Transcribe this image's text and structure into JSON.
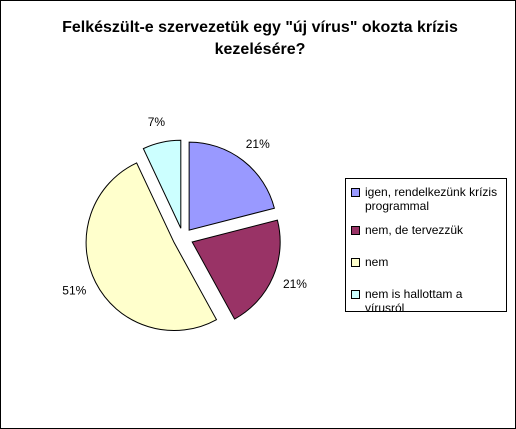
{
  "chart_data": {
    "type": "pie",
    "title": "Felkészült-e szervezetük egy \"új vírus\" okozta krízis kezelésére?",
    "categories": [
      "igen, rendelkezünk krízis programmal",
      "nem, de tervezzük",
      "nem",
      "nem is hallottam a vírusról"
    ],
    "values": [
      21,
      21,
      51,
      7
    ],
    "value_labels": [
      "21%",
      "21%",
      "51%",
      "7%"
    ],
    "colors": [
      "#9999ff",
      "#993366",
      "#ffffcc",
      "#ccffff"
    ],
    "exploded": true,
    "legend": "right"
  }
}
